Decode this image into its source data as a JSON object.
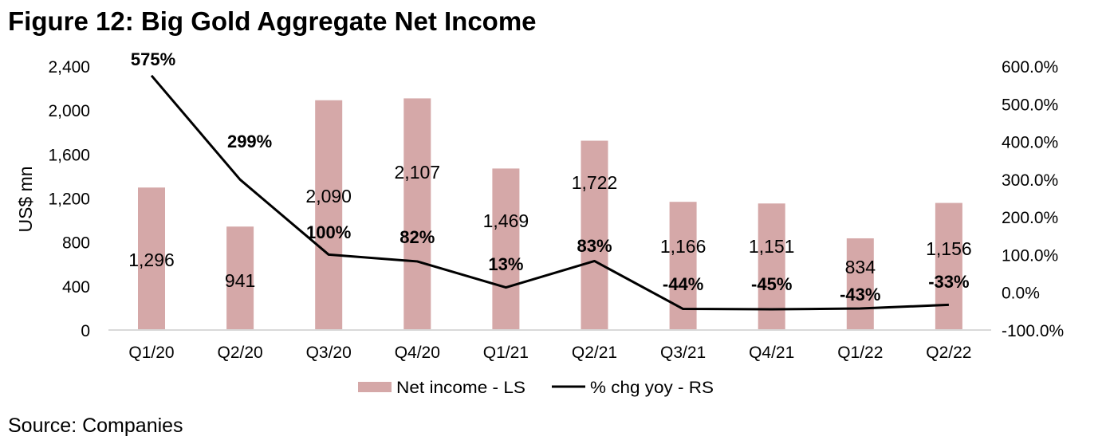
{
  "title": "Figure 12: Big Gold Aggregate Net Income",
  "source": "Source: Companies",
  "colors": {
    "bar": "#d5a8a8",
    "line": "#000000",
    "axis": "#d9d9d9"
  },
  "chart_data": {
    "type": "bar",
    "title": "Figure 12: Big Gold Aggregate Net Income",
    "categories": [
      "Q1/20",
      "Q2/20",
      "Q3/20",
      "Q4/20",
      "Q1/21",
      "Q2/21",
      "Q3/21",
      "Q4/21",
      "Q1/22",
      "Q2/22"
    ],
    "series": [
      {
        "name": "Net income - LS",
        "type": "bar",
        "axis": "left",
        "values": [
          1296,
          941,
          2090,
          2107,
          1469,
          1722,
          1166,
          1151,
          834,
          1156
        ],
        "labels": [
          "1,296",
          "941",
          "2,090",
          "2,107",
          "1,469",
          "1,722",
          "1,166",
          "1,151",
          "834",
          "1,156"
        ]
      },
      {
        "name": "% chg yoy - RS",
        "type": "line",
        "axis": "right",
        "values": [
          575,
          299,
          100,
          82,
          13,
          83,
          -44,
          -45,
          -43,
          -33
        ],
        "labels": [
          "575%",
          "299%",
          "100%",
          "82%",
          "13%",
          "83%",
          "-44%",
          "-45%",
          "-43%",
          "-33%"
        ]
      }
    ],
    "ylabel": "US$ mn",
    "ylim": [
      0,
      2400
    ],
    "yticks": [
      "0",
      "400",
      "800",
      "1,200",
      "1,600",
      "2,000",
      "2,400"
    ],
    "ytick_values": [
      0,
      400,
      800,
      1200,
      1600,
      2000,
      2400
    ],
    "y2lim": [
      -100,
      600
    ],
    "y2ticks": [
      "-100.0%",
      "0.0%",
      "100.0%",
      "200.0%",
      "300.0%",
      "400.0%",
      "500.0%",
      "600.0%"
    ],
    "y2tick_values": [
      -100,
      0,
      100,
      200,
      300,
      400,
      500,
      600
    ],
    "legend": [
      "Net income - LS",
      "% chg yoy - RS"
    ],
    "legend_position": "bottom",
    "grid": false
  }
}
